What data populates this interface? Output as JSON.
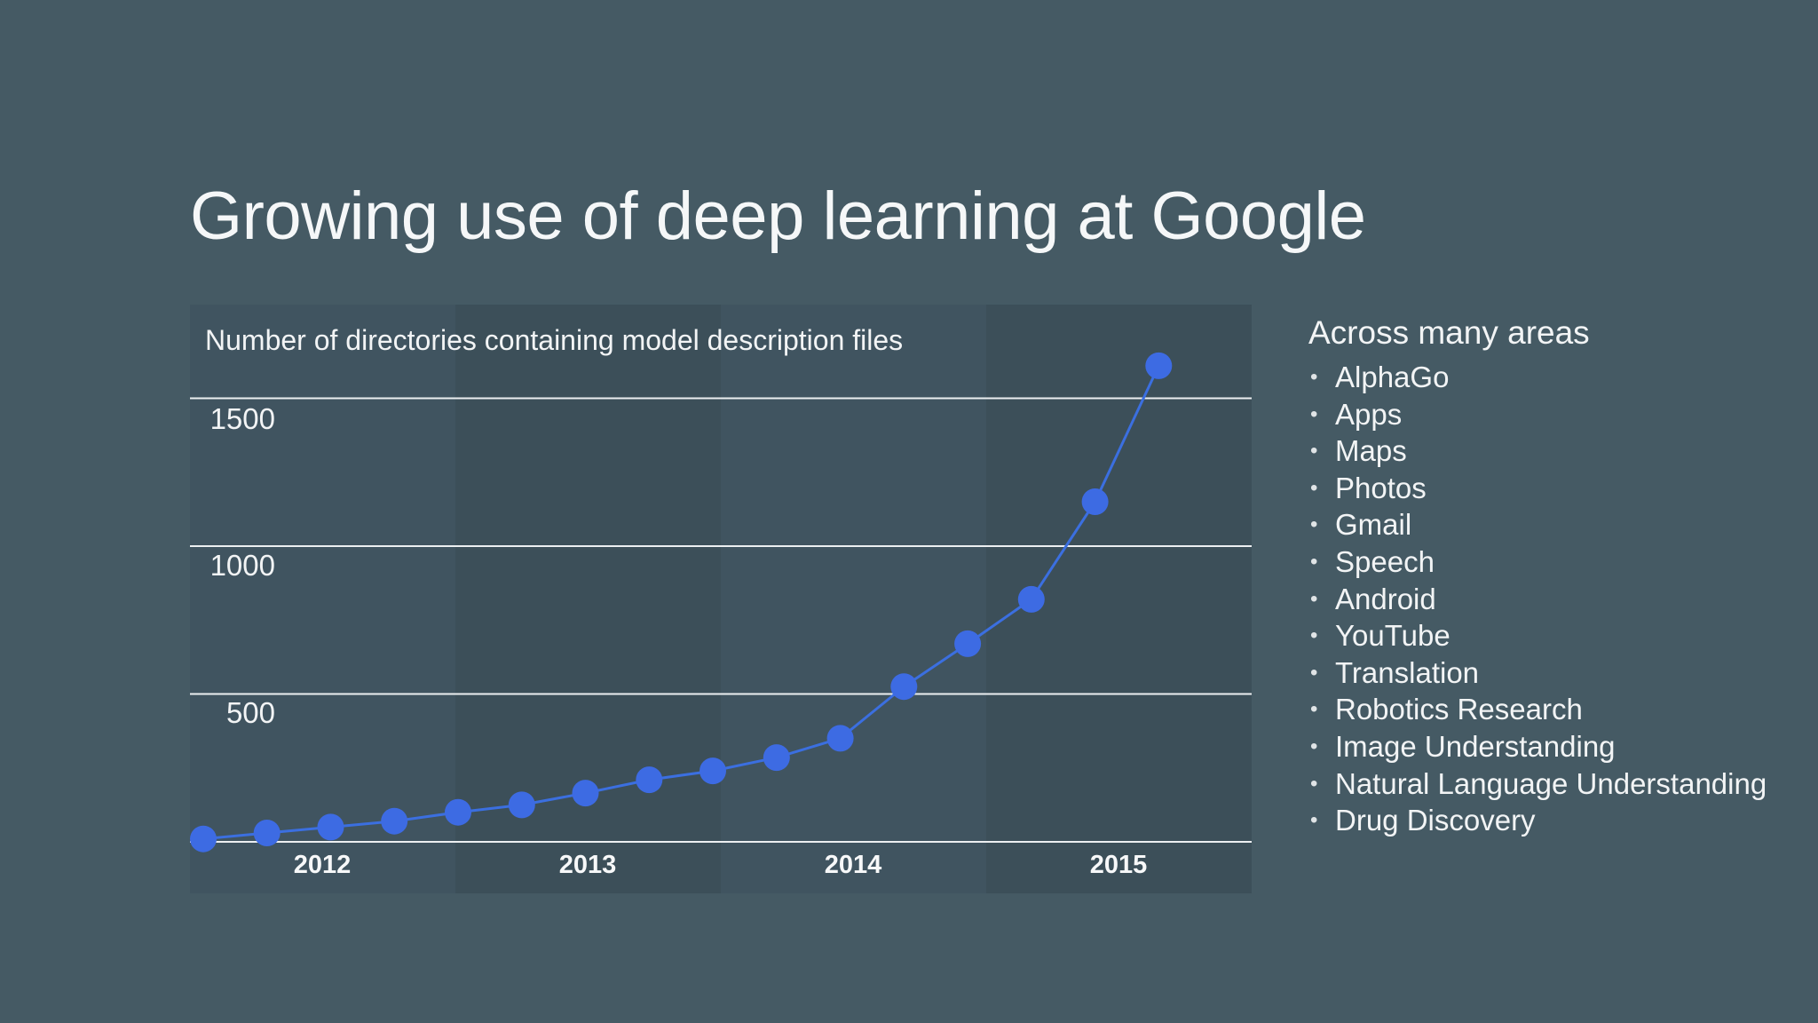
{
  "slide": {
    "title": "Growing use of deep learning at Google"
  },
  "chart_data": {
    "type": "line",
    "subtitle": "Number of directories containing model description files",
    "y_ticks": [
      "500",
      "1000",
      "1500"
    ],
    "ylim": [
      0,
      1500
    ],
    "categories": [
      "2012",
      "2013",
      "2014",
      "2015"
    ],
    "x": [
      0.05,
      0.29,
      0.53,
      0.77,
      1.01,
      1.25,
      1.49,
      1.73,
      1.97,
      2.21,
      2.45,
      2.69,
      2.93,
      3.17,
      3.41,
      3.65
    ],
    "series": [
      {
        "values": [
          10,
          30,
          50,
          70,
          100,
          125,
          165,
          210,
          240,
          285,
          350,
          525,
          670,
          820,
          1150,
          1610
        ]
      }
    ],
    "grid": true,
    "legend": "none",
    "colors": {
      "line": "#3b6fe0",
      "point": "#3d6be3",
      "grid": "#eceff1",
      "band_dark": "#3c4f59",
      "band_light": "#405460"
    }
  },
  "areas": {
    "heading": "Across many areas",
    "bullet": "•",
    "items": [
      "AlphaGo",
      "Apps",
      "Maps",
      "Photos",
      "Gmail",
      "Speech",
      "Android",
      "YouTube",
      "Translation",
      "Robotics Research",
      "Image Understanding",
      "Natural Language Understanding",
      "Drug Discovery"
    ]
  }
}
